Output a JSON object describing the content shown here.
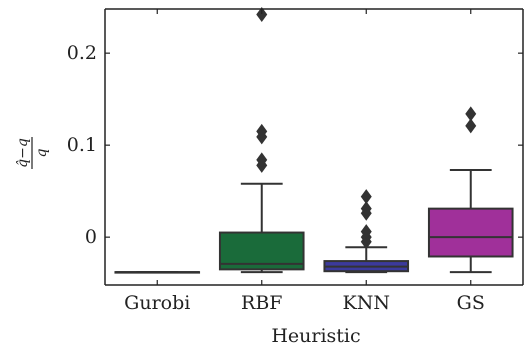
{
  "chart_data": {
    "type": "box",
    "xlabel": "Heuristic",
    "ylabel": {
      "numerator": "q̂−q",
      "denominator": "q"
    },
    "ylim": [
      -0.052,
      0.248
    ],
    "yticks": [
      0,
      0.1,
      0.2
    ],
    "ytick_labels": [
      "0",
      "0.1",
      "0.2"
    ],
    "grid": false,
    "categories": [
      "Gurobi",
      "RBF",
      "KNN",
      "GS"
    ],
    "boxes": [
      {
        "category": "Gurobi",
        "color": "#444444",
        "q1": -0.038,
        "median": -0.038,
        "q3": -0.038,
        "whisker_low": -0.038,
        "whisker_high": -0.038,
        "outliers": []
      },
      {
        "category": "RBF",
        "color": "#1a6b3a",
        "q1": -0.035,
        "median": -0.029,
        "q3": 0.005,
        "whisker_low": -0.038,
        "whisker_high": 0.058,
        "outliers": [
          0.078,
          0.084,
          0.109,
          0.115,
          0.242
        ]
      },
      {
        "category": "KNN",
        "color": "#3c3a9c",
        "q1": -0.037,
        "median": -0.032,
        "q3": -0.026,
        "whisker_low": -0.038,
        "whisker_high": -0.011,
        "outliers": [
          -0.005,
          0.0,
          0.006,
          0.026,
          0.031,
          0.044
        ]
      },
      {
        "category": "GS",
        "color": "#a0309a",
        "q1": -0.021,
        "median": 0.0,
        "q3": 0.031,
        "whisker_low": -0.038,
        "whisker_high": 0.073,
        "outliers": [
          0.121,
          0.134
        ]
      }
    ]
  }
}
